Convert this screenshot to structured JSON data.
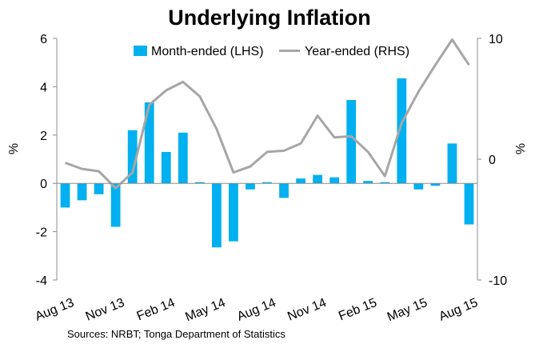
{
  "chart_data": {
    "type": "bar+line",
    "title": "Underlying Inflation",
    "categories": [
      "Aug 13",
      "Sep 13",
      "Oct 13",
      "Nov 13",
      "Dec 13",
      "Jan 14",
      "Feb 14",
      "Mar 14",
      "Apr 14",
      "May 14",
      "Jun 14",
      "Jul 14",
      "Aug 14",
      "Sep 14",
      "Oct 14",
      "Nov 14",
      "Dec 14",
      "Jan 15",
      "Feb 15",
      "Mar 15",
      "Apr 15",
      "May 15",
      "Jun 15",
      "Jul 15",
      "Aug 15"
    ],
    "x_tick_labels": [
      "Aug 13",
      "Nov 13",
      "Feb 14",
      "May 14",
      "Aug 14",
      "Nov 14",
      "Feb 15",
      "May 15",
      "Aug 15"
    ],
    "series": [
      {
        "name": "Month-ended (LHS)",
        "type": "bar",
        "axis": "left",
        "color": "#00b0f0",
        "values": [
          -1.0,
          -0.7,
          -0.45,
          -1.8,
          2.2,
          3.35,
          1.3,
          2.1,
          0.05,
          -2.65,
          -2.4,
          -0.25,
          0.05,
          -0.6,
          0.2,
          0.35,
          0.25,
          3.45,
          0.1,
          0.05,
          4.35,
          -0.25,
          -0.1,
          1.65,
          -1.7
        ]
      },
      {
        "name": "Year-ended (RHS)",
        "type": "line",
        "axis": "right",
        "color": "#a6a6a6",
        "values": [
          -0.3,
          -0.8,
          -1.0,
          -2.4,
          -1.1,
          4.5,
          5.7,
          6.4,
          5.2,
          2.5,
          -1.1,
          -0.6,
          0.6,
          0.7,
          1.3,
          3.6,
          1.8,
          1.9,
          0.6,
          -1.4,
          3.0,
          5.6,
          7.8,
          9.9,
          7.8
        ]
      }
    ],
    "y_left": {
      "label": "%",
      "lim": [
        -4,
        6
      ],
      "ticks": [
        -4,
        -2,
        0,
        2,
        4,
        6
      ]
    },
    "y_right": {
      "label": "%",
      "lim": [
        -10,
        10
      ],
      "ticks": [
        -10,
        0,
        10
      ]
    },
    "legend_position": "top"
  },
  "source_text": "Sources: NRBT; Tonga Department of Statistics"
}
